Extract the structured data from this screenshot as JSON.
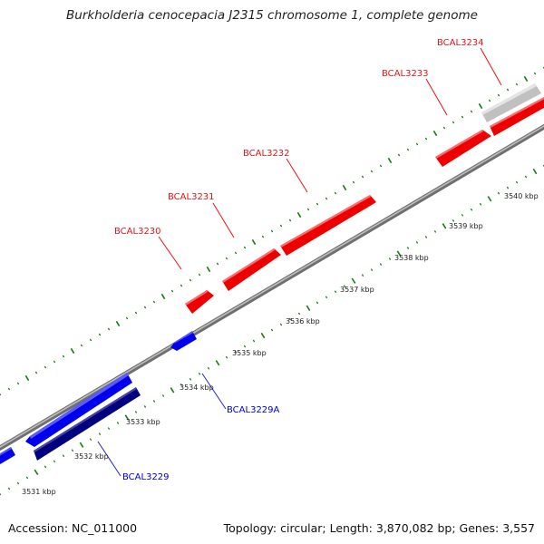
{
  "title": "Burkholderia cenocepacia J2315 chromosome 1, complete genome",
  "footer": {
    "accession": "Accession: NC_011000",
    "details": "Topology: circular; Length: 3,870,082 bp; Genes: 3,557"
  },
  "genes": [
    {
      "name": "BCAL3229",
      "strand": "minus",
      "color": "#000080"
    },
    {
      "name": "BCAL3229A",
      "strand": "minus",
      "color": "#0000ff"
    },
    {
      "name": "BCAL3230",
      "strand": "plus",
      "color": "#ff0000"
    },
    {
      "name": "BCAL3231",
      "strand": "plus",
      "color": "#ff0000"
    },
    {
      "name": "BCAL3232",
      "strand": "plus",
      "color": "#ff0000"
    },
    {
      "name": "BCAL3233",
      "strand": "plus",
      "color": "#ff0000"
    },
    {
      "name": "BCAL3234",
      "strand": "plus",
      "color": "#c0c0c0"
    }
  ],
  "scale": [
    "3531 kbp",
    "3532 kbp",
    "3533 kbp",
    "3534 kbp",
    "3535 kbp",
    "3536 kbp",
    "3537 kbp",
    "3538 kbp",
    "3539 kbp",
    "3540 kbp"
  ],
  "colors": {
    "plus_strand": "#ff0000",
    "minus_strand": "#0000ff",
    "minus_strand_dark": "#000080",
    "pseudo": "#c0c0c0",
    "ticks": "#1a7a1a",
    "backbone": "#888888"
  }
}
